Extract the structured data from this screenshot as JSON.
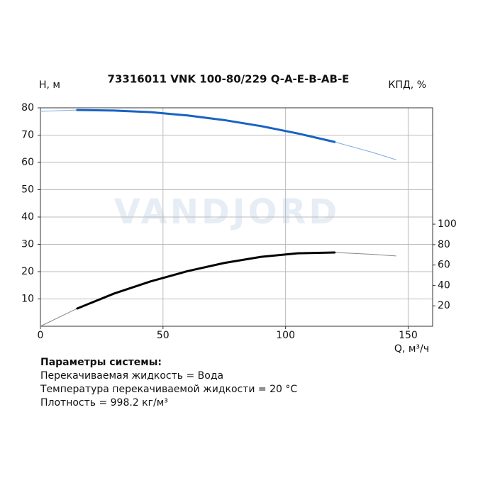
{
  "chart_data": {
    "type": "line",
    "title": "73316011 VNK 100-80/229 Q-A-E-B-AB-E",
    "ylabel": "H, м",
    "y2label": "КПД, %",
    "xlabel": "Q, м³/ч",
    "watermark": "VANDJORD",
    "xlim": [
      0,
      160
    ],
    "xticks": [
      0,
      50,
      100,
      150
    ],
    "ylim": [
      0,
      80
    ],
    "yticks": [
      10,
      20,
      30,
      40,
      50,
      60,
      70,
      80
    ],
    "y2lim": [
      0,
      214
    ],
    "y2ticks": [
      20,
      40,
      60,
      80,
      100
    ],
    "grid": true,
    "series": [
      {
        "color": "#7fa9dc",
        "width": 1,
        "axis": "y",
        "x": [
          0,
          15,
          30,
          45,
          60,
          75,
          90,
          105,
          120,
          135,
          145
        ],
        "values": [
          78.7,
          79.2,
          79.0,
          78.4,
          77.2,
          75.5,
          73.3,
          70.6,
          67.5,
          63.8,
          61.0
        ]
      },
      {
        "color": "#1763c4",
        "width": 3,
        "axis": "y",
        "x": [
          15,
          30,
          45,
          60,
          75,
          90,
          105,
          120
        ],
        "values": [
          79.2,
          79.0,
          78.4,
          77.2,
          75.5,
          73.3,
          70.6,
          67.5
        ]
      },
      {
        "color": "#888888",
        "width": 1,
        "axis": "y2",
        "x": [
          0,
          15,
          30,
          45,
          60,
          75,
          90,
          105,
          120,
          135,
          145
        ],
        "values": [
          0,
          17.4,
          32,
          44,
          54,
          62,
          68,
          71.5,
          72.3,
          70.5,
          68.9
        ]
      },
      {
        "color": "#000000",
        "width": 3,
        "axis": "y2",
        "x": [
          15,
          30,
          45,
          60,
          75,
          90,
          105,
          120
        ],
        "values": [
          17.4,
          32,
          44,
          54,
          62,
          68,
          71.5,
          72.3
        ]
      }
    ]
  },
  "params": {
    "heading": "Параметры системы:",
    "lines": [
      "Перекачиваемая жидкость = Вода",
      "Температура перекачиваемой жидкости = 20 °C",
      "Плотность = 998.2 кг/м³"
    ]
  }
}
